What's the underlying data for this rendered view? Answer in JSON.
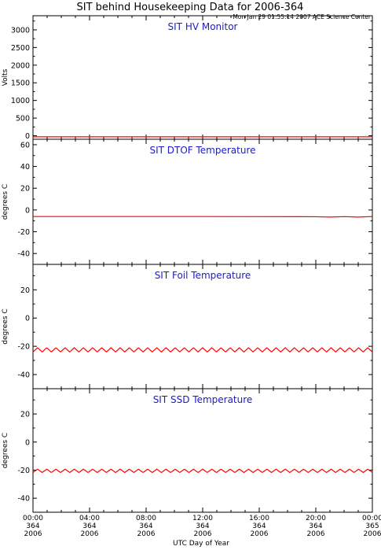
{
  "figure": {
    "title": "SIT behind Housekeeping Data for 2006-364",
    "timestamp": "Mon Jan 29 01:55:14 2007 ACE Science Center",
    "xlabel": "UTC Day of Year",
    "x_ticks": [
      {
        "t": "00:00",
        "d": "364",
        "y": "2006"
      },
      {
        "t": "04:00",
        "d": "364",
        "y": "2006"
      },
      {
        "t": "08:00",
        "d": "364",
        "y": "2006"
      },
      {
        "t": "12:00",
        "d": "364",
        "y": "2006"
      },
      {
        "t": "16:00",
        "d": "364",
        "y": "2006"
      },
      {
        "t": "20:00",
        "d": "364",
        "y": "2006"
      },
      {
        "t": "00:00",
        "d": "365",
        "y": "2006"
      }
    ]
  },
  "colors": {
    "title_text": "#1a1acc",
    "series": "#ff0000",
    "axis": "#000000"
  },
  "chart_data": [
    {
      "type": "line",
      "title": "SIT HV Monitor",
      "ylabel": "Volts",
      "xlim": [
        0,
        24
      ],
      "ylim": [
        -100,
        3400
      ],
      "yticks": [
        0,
        500,
        1000,
        1500,
        2000,
        2500,
        3000
      ],
      "ytick_labels": [
        "0",
        "500",
        "1000",
        "1500",
        "2000",
        "2500",
        "3000"
      ],
      "grid": false,
      "series": [
        {
          "x": [
            0,
            4,
            8,
            12,
            16,
            20,
            24
          ],
          "y": [
            -30,
            -30,
            -30,
            -30,
            -30,
            -30,
            -30
          ]
        }
      ]
    },
    {
      "type": "line",
      "title": "SIT DTOF Temperature",
      "ylabel": "degrees C",
      "xlim": [
        0,
        24
      ],
      "ylim": [
        -50,
        65
      ],
      "yticks": [
        -40,
        -20,
        0,
        20,
        40,
        60
      ],
      "ytick_labels": [
        "-40",
        "-20",
        "0",
        "20",
        "40",
        "60"
      ],
      "grid": false,
      "series": [
        {
          "x": [
            0,
            4,
            8,
            12,
            16,
            20,
            21,
            22,
            23,
            24
          ],
          "y": [
            -6,
            -6,
            -6,
            -6,
            -6.1,
            -6.2,
            -6.5,
            -6.1,
            -6.5,
            -6
          ]
        }
      ]
    },
    {
      "type": "line",
      "title": "SIT Foil Temperature",
      "ylabel": "degrees C",
      "xlim": [
        0,
        24
      ],
      "ylim": [
        -50,
        38
      ],
      "yticks": [
        -40,
        -20,
        0,
        20
      ],
      "ytick_labels": [
        "-40",
        "-20",
        "0",
        "20"
      ],
      "grid": false,
      "oscillation": {
        "mean": -22.5,
        "amplitude": 1.5,
        "cycles": 37
      }
    },
    {
      "type": "line",
      "title": "SIT SSD Temperature",
      "ylabel": "degrees C",
      "xlim": [
        0,
        24
      ],
      "ylim": [
        -50,
        38
      ],
      "yticks": [
        -40,
        -20,
        0,
        20
      ],
      "ytick_labels": [
        "-40",
        "-20",
        "0",
        "20"
      ],
      "grid": false,
      "oscillation": {
        "mean": -20.5,
        "amplitude": 1.2,
        "cycles": 37
      }
    }
  ]
}
